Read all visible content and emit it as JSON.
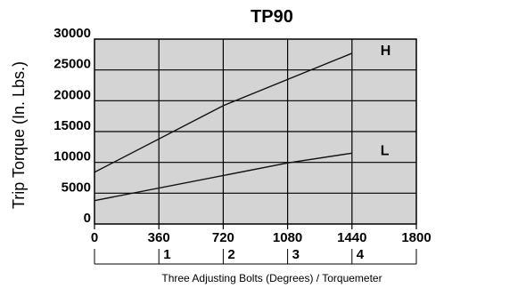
{
  "chart_data": {
    "type": "line",
    "title": "TP90",
    "xlabel": "Three Adjusting Bolts (Degrees) / Torquemeter",
    "ylabel": "Trip Torque (In. Lbs.)",
    "xlim": [
      0,
      1800
    ],
    "ylim": [
      0,
      30000
    ],
    "x_ticks": [
      "0",
      "360",
      "720",
      "1080",
      "1440",
      "1800"
    ],
    "y_ticks": [
      "0",
      "5000",
      "10000",
      "15000",
      "20000",
      "25000",
      "30000"
    ],
    "torquemeter_ticks": [
      "1",
      "2",
      "3",
      "4"
    ],
    "grid": true,
    "background": "#d4d4d4",
    "series": [
      {
        "name": "H",
        "x": [
          0,
          720,
          1440
        ],
        "y": [
          8400,
          19200,
          27700
        ]
      },
      {
        "name": "L",
        "x": [
          0,
          1080,
          1440
        ],
        "y": [
          3800,
          9900,
          11500
        ]
      }
    ]
  }
}
